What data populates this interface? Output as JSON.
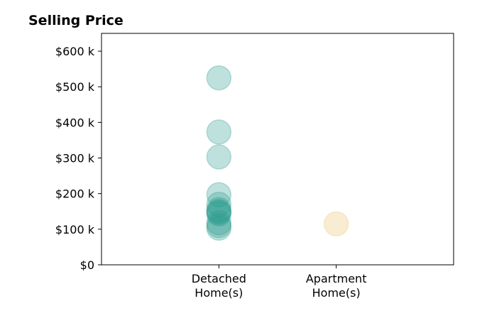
{
  "chart_data": {
    "type": "scatter",
    "title": "Selling Price",
    "xlabel": "",
    "ylabel": "",
    "categories": [
      [
        "Detached",
        "Home(s)"
      ],
      [
        "Apartment",
        "Home(s)"
      ]
    ],
    "xlim": [
      -1,
      2
    ],
    "ylim": [
      0,
      650000
    ],
    "yticks": [
      0,
      100000,
      200000,
      300000,
      400000,
      500000,
      600000
    ],
    "ytick_labels": [
      "$0",
      "$100 k",
      "$200 k",
      "$300 k",
      "$400 k",
      "$500 k",
      "$600 k"
    ],
    "grid": false,
    "legend": "none",
    "series": [
      {
        "category_index": 0,
        "color": "#2a9d8f",
        "values": [
          525000,
          373000,
          303000,
          197000,
          170000,
          155000,
          150000,
          147000,
          143000,
          118000,
          110000,
          103000
        ]
      },
      {
        "category_index": 1,
        "color": "#e9c46a",
        "values": [
          115000
        ]
      }
    ]
  }
}
